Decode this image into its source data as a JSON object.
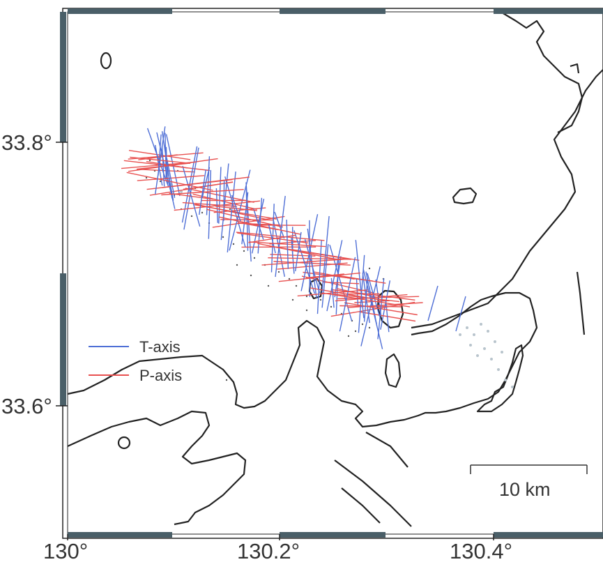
{
  "map": {
    "axis_labels": {
      "lat": [
        "33.8°",
        "33.6°"
      ],
      "lon": [
        "130°",
        "130.2°",
        "130.4°"
      ]
    },
    "legend": {
      "t_axis": "T-axis",
      "p_axis": "P-axis"
    },
    "scale_bar": {
      "label": "10 km"
    },
    "colors": {
      "t_axis": "#4f6fd6",
      "p_axis": "#e8504f",
      "coastline": "#222222",
      "frame_dark": "#4a5f68",
      "events_gray": "#b8c4cc"
    }
  }
}
